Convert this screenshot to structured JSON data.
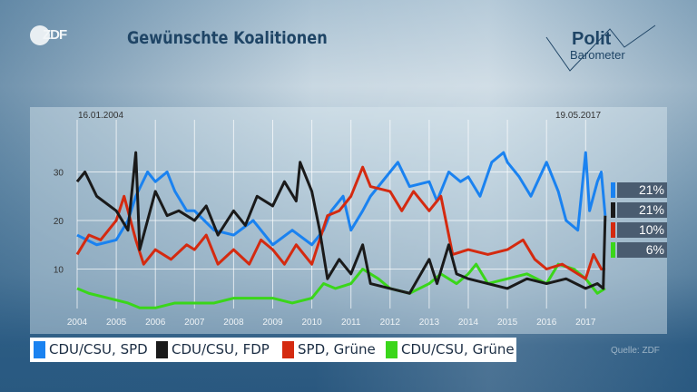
{
  "header": {
    "logo": "ZDF",
    "title": "Gewünschte Koalitionen",
    "brand_line1": "Polit",
    "brand_line2": "Barometer"
  },
  "source": "Quelle: ZDF",
  "chart_data": {
    "type": "line",
    "title": "Gewünschte Koalitionen",
    "start_label": "16.01.2004",
    "end_label": "19.05.2017",
    "x_ticks": [
      "2004",
      "2005",
      "2006",
      "2007",
      "2008",
      "2009",
      "2010",
      "2011",
      "2012",
      "2013",
      "2014",
      "2015",
      "2016",
      "2017"
    ],
    "y_ticks": [
      "10",
      "20",
      "30"
    ],
    "xlim": [
      2003.8,
      2017.6
    ],
    "ylim": [
      0,
      35
    ],
    "grid": true,
    "legend_position": "bottom",
    "series": [
      {
        "name": "CDU/CSU, SPD",
        "color": "#1a82f0",
        "final": "21%",
        "points": [
          [
            2004,
            17
          ],
          [
            2004.5,
            15
          ],
          [
            2005,
            16
          ],
          [
            2005.3,
            20
          ],
          [
            2005.5,
            25
          ],
          [
            2005.8,
            30
          ],
          [
            2006,
            28
          ],
          [
            2006.3,
            30
          ],
          [
            2006.5,
            26
          ],
          [
            2006.8,
            22
          ],
          [
            2007,
            22
          ],
          [
            2007.5,
            18
          ],
          [
            2008,
            17
          ],
          [
            2008.5,
            20
          ],
          [
            2009,
            15
          ],
          [
            2009.5,
            18
          ],
          [
            2010,
            15
          ],
          [
            2010.3,
            18
          ],
          [
            2010.5,
            22
          ],
          [
            2010.8,
            25
          ],
          [
            2011,
            18
          ],
          [
            2011.3,
            22
          ],
          [
            2011.5,
            25
          ],
          [
            2012,
            30
          ],
          [
            2012.2,
            32
          ],
          [
            2012.5,
            27
          ],
          [
            2013,
            28
          ],
          [
            2013.2,
            24
          ],
          [
            2013.5,
            30
          ],
          [
            2013.8,
            28
          ],
          [
            2014,
            29
          ],
          [
            2014.3,
            25
          ],
          [
            2014.6,
            32
          ],
          [
            2014.9,
            34
          ],
          [
            2015,
            32
          ],
          [
            2015.3,
            29
          ],
          [
            2015.6,
            25
          ],
          [
            2016,
            32
          ],
          [
            2016.3,
            26
          ],
          [
            2016.5,
            20
          ],
          [
            2016.8,
            18
          ],
          [
            2017,
            34
          ],
          [
            2017.1,
            22
          ],
          [
            2017.3,
            28
          ],
          [
            2017.4,
            30
          ],
          [
            2017.5,
            21
          ]
        ]
      },
      {
        "name": "CDU/CSU, FDP",
        "color": "#1a1a1a",
        "final": "21%",
        "points": [
          [
            2004,
            28
          ],
          [
            2004.2,
            30
          ],
          [
            2004.5,
            25
          ],
          [
            2005,
            22
          ],
          [
            2005.3,
            18
          ],
          [
            2005.5,
            34
          ],
          [
            2005.6,
            14
          ],
          [
            2005.8,
            20
          ],
          [
            2006,
            26
          ],
          [
            2006.3,
            21
          ],
          [
            2006.6,
            22
          ],
          [
            2007,
            20
          ],
          [
            2007.3,
            23
          ],
          [
            2007.6,
            17
          ],
          [
            2008,
            22
          ],
          [
            2008.3,
            19
          ],
          [
            2008.6,
            25
          ],
          [
            2009,
            23
          ],
          [
            2009.3,
            28
          ],
          [
            2009.6,
            24
          ],
          [
            2009.7,
            32
          ],
          [
            2010,
            26
          ],
          [
            2010.2,
            18
          ],
          [
            2010.4,
            8
          ],
          [
            2010.7,
            12
          ],
          [
            2011,
            9
          ],
          [
            2011.3,
            15
          ],
          [
            2011.5,
            7
          ],
          [
            2012,
            6
          ],
          [
            2012.5,
            5
          ],
          [
            2013,
            12
          ],
          [
            2013.2,
            7
          ],
          [
            2013.5,
            15
          ],
          [
            2013.7,
            9
          ],
          [
            2014,
            8
          ],
          [
            2014.5,
            7
          ],
          [
            2015,
            6
          ],
          [
            2015.5,
            8
          ],
          [
            2016,
            7
          ],
          [
            2016.5,
            8
          ],
          [
            2017,
            6
          ],
          [
            2017.3,
            7
          ],
          [
            2017.45,
            6
          ],
          [
            2017.5,
            21
          ]
        ]
      },
      {
        "name": "SPD, Grüne",
        "color": "#d42a10",
        "final": "10%",
        "points": [
          [
            2004,
            13
          ],
          [
            2004.3,
            17
          ],
          [
            2004.6,
            16
          ],
          [
            2005,
            20
          ],
          [
            2005.2,
            25
          ],
          [
            2005.5,
            16
          ],
          [
            2005.7,
            11
          ],
          [
            2006,
            14
          ],
          [
            2006.4,
            12
          ],
          [
            2006.8,
            15
          ],
          [
            2007,
            14
          ],
          [
            2007.3,
            17
          ],
          [
            2007.6,
            11
          ],
          [
            2008,
            14
          ],
          [
            2008.4,
            11
          ],
          [
            2008.7,
            16
          ],
          [
            2009,
            14
          ],
          [
            2009.3,
            11
          ],
          [
            2009.6,
            15
          ],
          [
            2010,
            11
          ],
          [
            2010.4,
            21
          ],
          [
            2010.7,
            22
          ],
          [
            2011,
            25
          ],
          [
            2011.3,
            31
          ],
          [
            2011.5,
            27
          ],
          [
            2012,
            26
          ],
          [
            2012.3,
            22
          ],
          [
            2012.6,
            26
          ],
          [
            2013,
            22
          ],
          [
            2013.3,
            25
          ],
          [
            2013.6,
            13
          ],
          [
            2014,
            14
          ],
          [
            2014.5,
            13
          ],
          [
            2015,
            14
          ],
          [
            2015.4,
            16
          ],
          [
            2015.7,
            12
          ],
          [
            2016,
            10
          ],
          [
            2016.4,
            11
          ],
          [
            2016.8,
            9
          ],
          [
            2017,
            8
          ],
          [
            2017.2,
            13
          ],
          [
            2017.4,
            10
          ],
          [
            2017.5,
            10
          ]
        ]
      },
      {
        "name": "CDU/CSU, Grüne",
        "color": "#3ad61a",
        "final": "6%",
        "points": [
          [
            2004,
            6
          ],
          [
            2004.3,
            5
          ],
          [
            2004.8,
            4
          ],
          [
            2005.3,
            3
          ],
          [
            2005.6,
            2
          ],
          [
            2006,
            2
          ],
          [
            2006.5,
            3
          ],
          [
            2007,
            3
          ],
          [
            2007.5,
            3
          ],
          [
            2008,
            4
          ],
          [
            2008.5,
            4
          ],
          [
            2009,
            4
          ],
          [
            2009.5,
            3
          ],
          [
            2010,
            4
          ],
          [
            2010.3,
            7
          ],
          [
            2010.6,
            6
          ],
          [
            2011,
            7
          ],
          [
            2011.3,
            10
          ],
          [
            2011.7,
            8
          ],
          [
            2012,
            6
          ],
          [
            2012.5,
            5
          ],
          [
            2013,
            7
          ],
          [
            2013.3,
            9
          ],
          [
            2013.7,
            7
          ],
          [
            2014,
            9
          ],
          [
            2014.2,
            11
          ],
          [
            2014.5,
            7
          ],
          [
            2015,
            8
          ],
          [
            2015.5,
            9
          ],
          [
            2016,
            7
          ],
          [
            2016.3,
            11
          ],
          [
            2016.7,
            10
          ],
          [
            2017,
            8
          ],
          [
            2017.3,
            5
          ],
          [
            2017.5,
            6
          ]
        ]
      }
    ]
  }
}
